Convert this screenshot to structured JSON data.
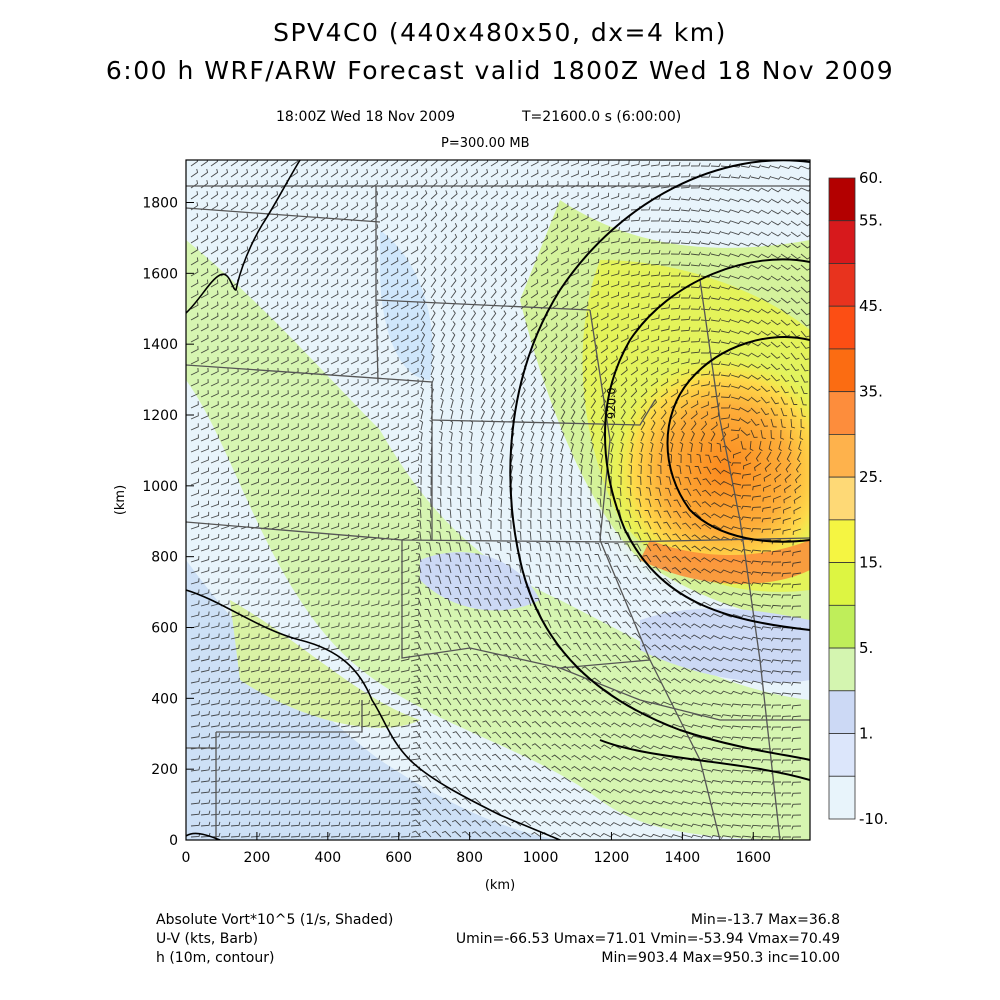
{
  "header": {
    "title_line1": "SPV4C0 (440x480x50, dx=4 km)",
    "title_line2": "6:00 h WRF/ARW Forecast valid 1800Z Wed 18 Nov 2009",
    "time_label": "18:00Z Wed 18 Nov 2009",
    "t_label": "T=21600.0 s (6:00:00)",
    "pressure_label": "P=300.00 MB"
  },
  "axes": {
    "x_label": "(km)",
    "y_label": "(km)",
    "x_ticks": [
      "0",
      "200",
      "400",
      "600",
      "800",
      "1000",
      "1200",
      "1400",
      "1600"
    ],
    "y_ticks": [
      "0",
      "200",
      "400",
      "600",
      "800",
      "1000",
      "1200",
      "1400",
      "1600",
      "1800"
    ],
    "x_range_km": [
      0,
      1760
    ],
    "y_range_km": [
      0,
      1920
    ]
  },
  "colorbar": {
    "tick_labels": [
      "60.",
      "55.",
      "45.",
      "35.",
      "25.",
      "15.",
      "5.",
      "1.",
      "-10."
    ],
    "colors": [
      "#b30000",
      "#d7191c",
      "#e8331e",
      "#fc4e14",
      "#fb6c12",
      "#fd8d3c",
      "#feb24c",
      "#fed976",
      "#f5f542",
      "#ddf542",
      "#bfee5a",
      "#d4f5b0",
      "#ccd9f5",
      "#dce6fb",
      "#e8f4fb"
    ]
  },
  "contour_label": "920.0",
  "legend": {
    "field1": "Absolute Vort*10^5 (1/s, Shaded)",
    "field2": "U-V (kts, Barb)",
    "field3": "h (10m, contour)",
    "stats1": "Min=-13.7 Max=36.8",
    "stats2": "Umin=-66.53 Umax=71.01 Vmin=-53.94 Vmax=70.49",
    "stats3": "Min=903.4 Max=950.3 inc=10.00"
  }
}
